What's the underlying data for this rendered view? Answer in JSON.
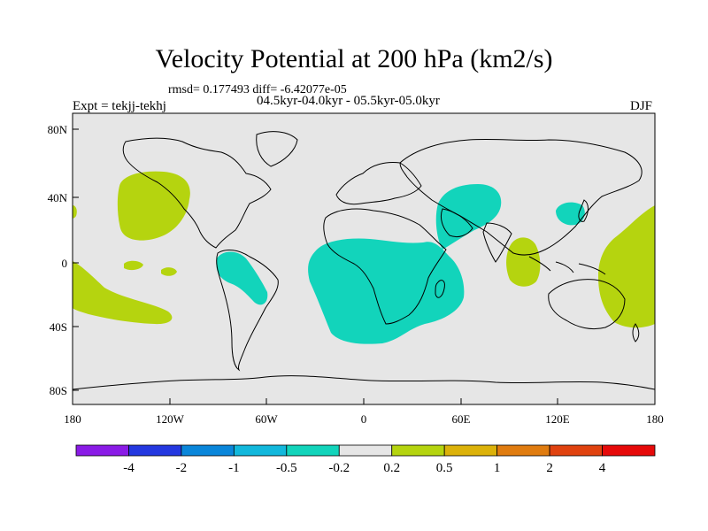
{
  "title": "Velocity Potential at 200 hPa (km2/s)",
  "stats": "rmsd= 0.177493 diff= -6.42077e-05",
  "period": "04.5kyr-04.0kyr - 05.5kyr-05.0kyr",
  "experiment": "Expt = tekjj-tekhj",
  "season": "DJF",
  "map": {
    "projection": "cylindrical equidistant",
    "lon_range": [
      -180,
      180
    ],
    "lat_range": [
      -90,
      90
    ],
    "x_ticks": [
      "180",
      "120W",
      "60W",
      "0",
      "60E",
      "120E",
      "180"
    ],
    "y_ticks": [
      "80N",
      "40N",
      "0",
      "40S",
      "80S"
    ],
    "background_color": "#e6e6e6",
    "ocean_frame_color": "#000000"
  },
  "colorbar": {
    "labels": [
      "-4",
      "-2",
      "-1",
      "-0.5",
      "-0.2",
      "0.2",
      "0.5",
      "1",
      "2",
      "4"
    ],
    "colors": [
      "#8a1be6",
      "#2438e0",
      "#0a86da",
      "#12b8dc",
      "#12d4bb",
      "#e6e6e6",
      "#b5d40f",
      "#dcb20a",
      "#e07c10",
      "#e0420f",
      "#e60a0a"
    ]
  },
  "anomaly_regions": [
    {
      "name": "Africa and South Atlantic",
      "category": "-0.5 to -0.2",
      "color": "#12d4bb"
    },
    {
      "name": "Arabia and East Africa",
      "category": "-0.5 to -0.2",
      "color": "#12d4bb"
    },
    {
      "name": "Northwest South America",
      "category": "-0.5 to -0.2",
      "color": "#12d4bb"
    },
    {
      "name": "Korea and Japan",
      "category": "-0.5 to -0.2",
      "color": "#12d4bb"
    },
    {
      "name": "Northeast Pacific",
      "category": "0.2 to 0.5",
      "color": "#b5d40f"
    },
    {
      "name": "South Pacific",
      "category": "0.2 to 0.5",
      "color": "#b5d40f"
    },
    {
      "name": "Central Pacific islands",
      "category": "0.2 to 0.5",
      "color": "#b5d40f"
    },
    {
      "name": "Eastern Indian Ocean",
      "category": "0.2 to 0.5",
      "color": "#b5d40f"
    },
    {
      "name": "West Pacific",
      "category": "0.2 to 0.5",
      "color": "#b5d40f"
    },
    {
      "name": "Dateline North Pacific",
      "category": "0.2 to 0.5",
      "color": "#b5d40f"
    }
  ]
}
